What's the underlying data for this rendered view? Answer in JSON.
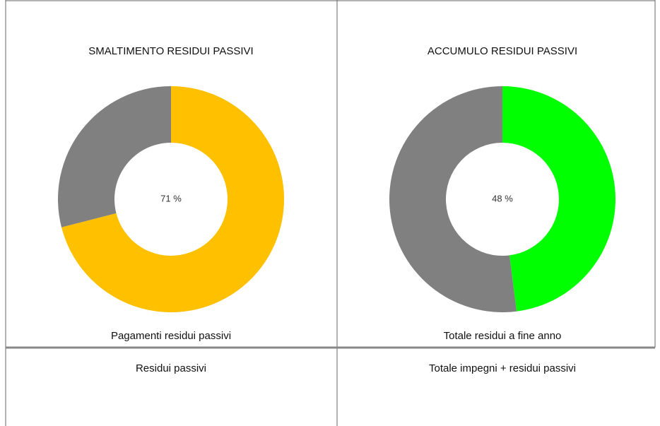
{
  "chart_data": [
    {
      "type": "donut",
      "title": "SMALTIMENTO  RESIDUI  PASSIVI",
      "values": [
        71,
        29
      ],
      "value_labels": [
        "71 %",
        null
      ],
      "colors": [
        "#ffc000",
        "#808080"
      ]
    },
    {
      "type": "donut",
      "title": "ACCUMULO  RESIDUI  PASSIVI",
      "values": [
        48,
        52
      ],
      "value_labels": [
        "48 %",
        null
      ],
      "colors": [
        "#00ff00",
        "#808080"
      ]
    }
  ],
  "table": {
    "rows": [
      [
        "Pagamenti residui passivi",
        "Totale residui a fine anno"
      ],
      [
        "Residui passivi",
        "Totale impegni + residui passivi"
      ]
    ]
  }
}
